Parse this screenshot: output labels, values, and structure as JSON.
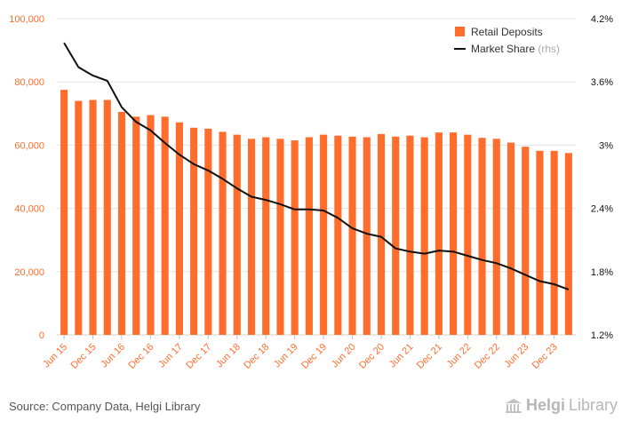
{
  "chart_data": {
    "type": "bar",
    "categories": [
      "Jun 15",
      "Sep 15",
      "Dec 15",
      "Mar 16",
      "Jun 16",
      "Sep 16",
      "Dec 16",
      "Mar 17",
      "Jun 17",
      "Sep 17",
      "Dec 17",
      "Mar 18",
      "Jun 18",
      "Sep 18",
      "Dec 18",
      "Mar 19",
      "Jun 19",
      "Sep 19",
      "Dec 19",
      "Mar 20",
      "Jun 20",
      "Sep 20",
      "Dec 20",
      "Mar 21",
      "Jun 21",
      "Sep 21",
      "Dec 21",
      "Mar 22",
      "Jun 22",
      "Sep 22",
      "Dec 22",
      "Mar 23",
      "Jun 23",
      "Sep 23",
      "Dec 23",
      "Mar 24"
    ],
    "x_tick_labels": [
      "Jun 15",
      "Dec 15",
      "Jun 16",
      "Dec 16",
      "Jun 17",
      "Dec 17",
      "Jun 18",
      "Dec 18",
      "Jun 19",
      "Dec 19",
      "Jun 20",
      "Dec 20",
      "Jun 21",
      "Dec 21",
      "Jun 22",
      "Dec 22",
      "Jun 23",
      "Dec 23"
    ],
    "series": [
      {
        "name": "Retail Deposits",
        "type": "bar",
        "axis": "left",
        "color": "#ff6d2d",
        "values": [
          77500,
          74000,
          74300,
          74300,
          70500,
          69000,
          69500,
          69000,
          67200,
          65500,
          65200,
          64200,
          63300,
          62000,
          62500,
          62000,
          61500,
          62500,
          63300,
          63000,
          62700,
          62500,
          63500,
          62700,
          63000,
          62500,
          64000,
          64000,
          63300,
          62300,
          62000,
          60800,
          59500,
          58200,
          58200,
          57500
        ]
      },
      {
        "name": "Market Share",
        "legend_suffix": "(rhs)",
        "type": "line",
        "axis": "right",
        "color": "#111111",
        "values": [
          3.97,
          3.74,
          3.66,
          3.61,
          3.36,
          3.22,
          3.14,
          3.02,
          2.91,
          2.82,
          2.76,
          2.68,
          2.59,
          2.51,
          2.48,
          2.44,
          2.39,
          2.39,
          2.38,
          2.31,
          2.21,
          2.16,
          2.13,
          2.02,
          1.99,
          1.97,
          2.0,
          1.99,
          1.95,
          1.91,
          1.88,
          1.83,
          1.77,
          1.71,
          1.68,
          1.63
        ]
      }
    ],
    "left_axis": {
      "min": 0,
      "max": 100000,
      "ticks": [
        "0",
        "20,000",
        "40,000",
        "60,000",
        "80,000",
        "100,000"
      ],
      "tick_values": [
        0,
        20000,
        40000,
        60000,
        80000,
        100000
      ],
      "color": "#ff6d2d"
    },
    "right_axis": {
      "min": 1.2,
      "max": 4.2,
      "ticks": [
        "1.2%",
        "1.8%",
        "2.4%",
        "3%",
        "3.6%",
        "4.2%"
      ],
      "tick_values": [
        1.2,
        1.8,
        2.4,
        3.0,
        3.6,
        4.2
      ],
      "color": "#111111"
    },
    "grid": true,
    "legend_position": "top-right"
  },
  "footer": {
    "source": "Source: Company Data, Helgi Library",
    "logo_part1": "Helgi",
    "logo_part2": "Library"
  }
}
